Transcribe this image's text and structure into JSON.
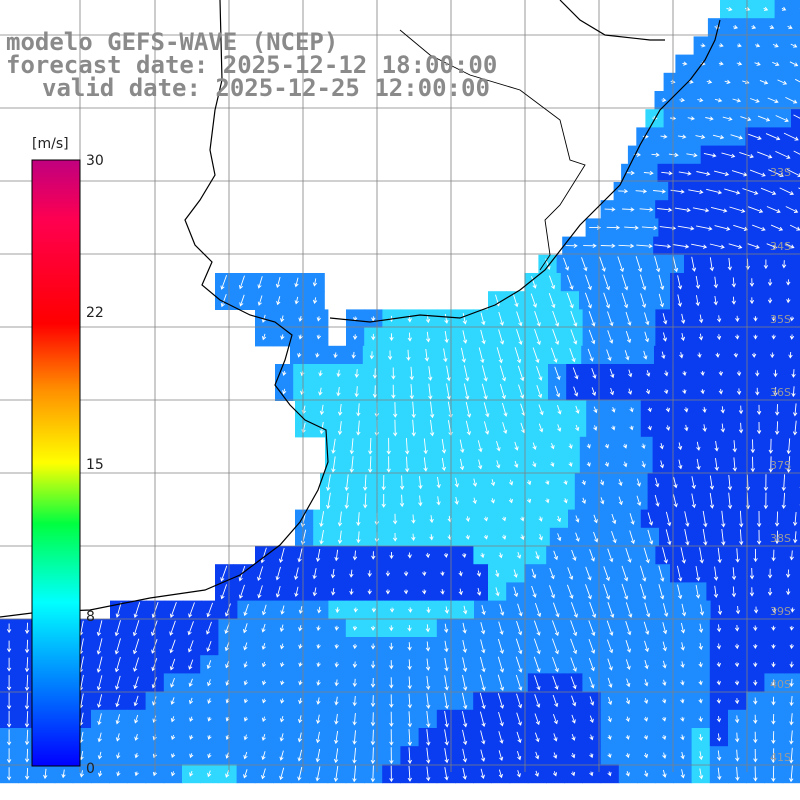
{
  "title": {
    "line1": "modelo GEFS-WAVE (NCEP)",
    "line2": "forecast date: 2025-12-12 18:00:00",
    "line3": "valid date: 2025-12-25 12:00:00"
  },
  "colorbar": {
    "unit": "[m/s]",
    "ticks": [
      "30",
      "22",
      "15",
      "8",
      "0"
    ],
    "range": [
      0,
      30
    ],
    "colors": [
      "#0000ff",
      "#00c8ff",
      "#00ffd0",
      "#00ff40",
      "#80ff00",
      "#ffff00",
      "#ffa000",
      "#ff2000",
      "#ff0040",
      "#c0007f"
    ]
  },
  "latitude_labels": [
    "33S",
    "34S",
    "35S",
    "36S",
    "37S",
    "38S",
    "39S",
    "40S",
    "41S"
  ],
  "colors": {
    "land": "#ffffff",
    "coast": "#000000",
    "grid": "#808080",
    "ocean_low": "#0a3cf0",
    "ocean_mid": "#1e8cff",
    "ocean_high": "#30d8ff",
    "arrow": "#ffffff"
  }
}
